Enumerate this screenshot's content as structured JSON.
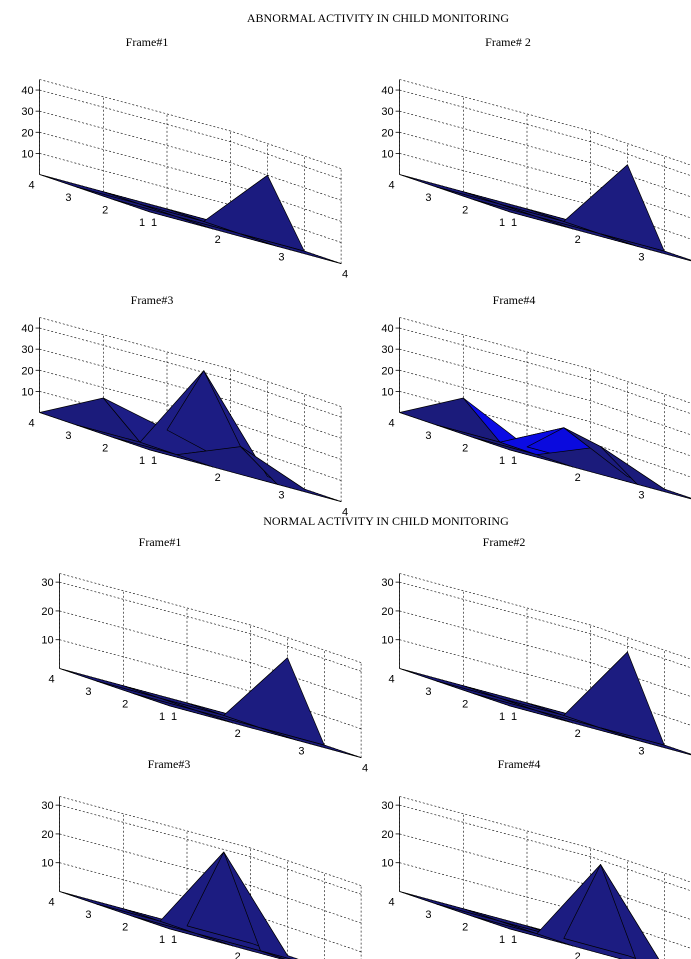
{
  "figures": [
    {
      "title": "ABNORMAL ACTIVITY IN CHILD MONITORING",
      "zlim": [
        0,
        45
      ],
      "zticks": [
        10,
        20,
        30,
        40
      ],
      "panels": [
        {
          "title": "Frame#1",
          "z": [
            [
              0,
              0,
              0,
              0
            ],
            [
              0,
              0,
              0,
              0
            ],
            [
              0,
              0,
              0,
              0
            ],
            [
              0,
              0,
              30,
              0
            ]
          ],
          "highlight": []
        },
        {
          "title": "Frame# 2",
          "z": [
            [
              0,
              0,
              0,
              0
            ],
            [
              0,
              0,
              0,
              0
            ],
            [
              0,
              0,
              0,
              0
            ],
            [
              0,
              0,
              35,
              0
            ]
          ],
          "highlight": []
        },
        {
          "title": "Frame#3",
          "z": [
            [
              0,
              0,
              0,
              0
            ],
            [
              0,
              0,
              0,
              15
            ],
            [
              0,
              12,
              42,
              8
            ],
            [
              0,
              0,
              0,
              0
            ]
          ],
          "highlight": []
        },
        {
          "title": "Frame#4",
          "z": [
            [
              0,
              0,
              0,
              0
            ],
            [
              0,
              0,
              0,
              15
            ],
            [
              0,
              12,
              15,
              0
            ],
            [
              0,
              0,
              0,
              0
            ]
          ],
          "highlight": [
            [
              1,
              1
            ],
            [
              1,
              2
            ],
            [
              2,
              2
            ]
          ]
        }
      ]
    },
    {
      "title": "NORMAL ACTIVITY IN CHILD MONITORING",
      "zlim": [
        0,
        33
      ],
      "zticks": [
        10,
        20,
        30
      ],
      "panels": [
        {
          "title": "Frame#1",
          "z": [
            [
              0,
              0,
              0,
              0
            ],
            [
              0,
              0,
              0,
              0
            ],
            [
              0,
              0,
              0,
              0
            ],
            [
              0,
              0,
              26,
              0
            ]
          ],
          "highlight": []
        },
        {
          "title": "Frame#2",
          "z": [
            [
              0,
              0,
              0,
              0
            ],
            [
              0,
              0,
              0,
              0
            ],
            [
              0,
              0,
              0,
              0
            ],
            [
              0,
              0,
              28,
              0
            ]
          ],
          "highlight": []
        },
        {
          "title": "Frame#3",
          "z": [
            [
              0,
              0,
              0,
              0
            ],
            [
              0,
              0,
              0,
              0
            ],
            [
              0,
              0,
              30,
              0
            ],
            [
              0,
              0,
              0,
              0
            ]
          ],
          "highlight": []
        },
        {
          "title": "Frame#4",
          "z": [
            [
              0,
              0,
              0,
              0
            ],
            [
              0,
              0,
              0,
              0
            ],
            [
              0,
              30,
              0,
              0
            ],
            [
              0,
              0,
              0,
              0
            ]
          ],
          "highlight": []
        }
      ]
    }
  ],
  "axes": {
    "x_ticks": [
      "1",
      "2",
      "3",
      "4"
    ],
    "y_ticks": [
      "1",
      "2",
      "3",
      "4"
    ]
  },
  "colors": {
    "surface": "#1a1a78",
    "surface_highlight": "#0a0ad8",
    "background": "#ffffff"
  },
  "chart_data": [
    {
      "type": "surface",
      "title": "Frame#1",
      "figure": "ABNORMAL ACTIVITY IN CHILD MONITORING",
      "x": [
        1,
        2,
        3,
        4
      ],
      "y": [
        1,
        2,
        3,
        4
      ],
      "z": [
        [
          0,
          0,
          0,
          0
        ],
        [
          0,
          0,
          0,
          0
        ],
        [
          0,
          0,
          0,
          0
        ],
        [
          0,
          0,
          30,
          0
        ]
      ],
      "zlim": [
        0,
        45
      ],
      "grid": true
    },
    {
      "type": "surface",
      "title": "Frame# 2",
      "figure": "ABNORMAL ACTIVITY IN CHILD MONITORING",
      "x": [
        1,
        2,
        3,
        4
      ],
      "y": [
        1,
        2,
        3,
        4
      ],
      "z": [
        [
          0,
          0,
          0,
          0
        ],
        [
          0,
          0,
          0,
          0
        ],
        [
          0,
          0,
          0,
          0
        ],
        [
          0,
          0,
          35,
          0
        ]
      ],
      "zlim": [
        0,
        45
      ],
      "grid": true
    },
    {
      "type": "surface",
      "title": "Frame#3",
      "figure": "ABNORMAL ACTIVITY IN CHILD MONITORING",
      "x": [
        1,
        2,
        3,
        4
      ],
      "y": [
        1,
        2,
        3,
        4
      ],
      "z": [
        [
          0,
          0,
          0,
          0
        ],
        [
          0,
          0,
          0,
          15
        ],
        [
          0,
          12,
          42,
          8
        ],
        [
          0,
          0,
          0,
          0
        ]
      ],
      "zlim": [
        0,
        45
      ],
      "grid": true
    },
    {
      "type": "surface",
      "title": "Frame#4",
      "figure": "ABNORMAL ACTIVITY IN CHILD MONITORING",
      "x": [
        1,
        2,
        3,
        4
      ],
      "y": [
        1,
        2,
        3,
        4
      ],
      "z": [
        [
          0,
          0,
          0,
          0
        ],
        [
          0,
          0,
          0,
          15
        ],
        [
          0,
          12,
          15,
          0
        ],
        [
          0,
          0,
          0,
          0
        ]
      ],
      "zlim": [
        0,
        45
      ],
      "grid": true
    },
    {
      "type": "surface",
      "title": "Frame#1",
      "figure": "NORMAL ACTIVITY IN CHILD MONITORING",
      "x": [
        1,
        2,
        3,
        4
      ],
      "y": [
        1,
        2,
        3,
        4
      ],
      "z": [
        [
          0,
          0,
          0,
          0
        ],
        [
          0,
          0,
          0,
          0
        ],
        [
          0,
          0,
          0,
          0
        ],
        [
          0,
          0,
          26,
          0
        ]
      ],
      "zlim": [
        0,
        33
      ],
      "grid": true
    },
    {
      "type": "surface",
      "title": "Frame#2",
      "figure": "NORMAL ACTIVITY IN CHILD MONITORING",
      "x": [
        1,
        2,
        3,
        4
      ],
      "y": [
        1,
        2,
        3,
        4
      ],
      "z": [
        [
          0,
          0,
          0,
          0
        ],
        [
          0,
          0,
          0,
          0
        ],
        [
          0,
          0,
          0,
          0
        ],
        [
          0,
          0,
          28,
          0
        ]
      ],
      "zlim": [
        0,
        33
      ],
      "grid": true
    },
    {
      "type": "surface",
      "title": "Frame#3",
      "figure": "NORMAL ACTIVITY IN CHILD MONITORING",
      "x": [
        1,
        2,
        3,
        4
      ],
      "y": [
        1,
        2,
        3,
        4
      ],
      "z": [
        [
          0,
          0,
          0,
          0
        ],
        [
          0,
          0,
          0,
          0
        ],
        [
          0,
          0,
          30,
          0
        ],
        [
          0,
          0,
          0,
          0
        ]
      ],
      "zlim": [
        0,
        33
      ],
      "grid": true
    },
    {
      "type": "surface",
      "title": "Frame#4",
      "figure": "NORMAL ACTIVITY IN CHILD MONITORING",
      "x": [
        1,
        2,
        3,
        4
      ],
      "y": [
        1,
        2,
        3,
        4
      ],
      "z": [
        [
          0,
          0,
          0,
          0
        ],
        [
          0,
          0,
          0,
          0
        ],
        [
          0,
          30,
          0,
          0
        ],
        [
          0,
          0,
          0,
          0
        ]
      ],
      "zlim": [
        0,
        33
      ],
      "grid": true
    }
  ]
}
